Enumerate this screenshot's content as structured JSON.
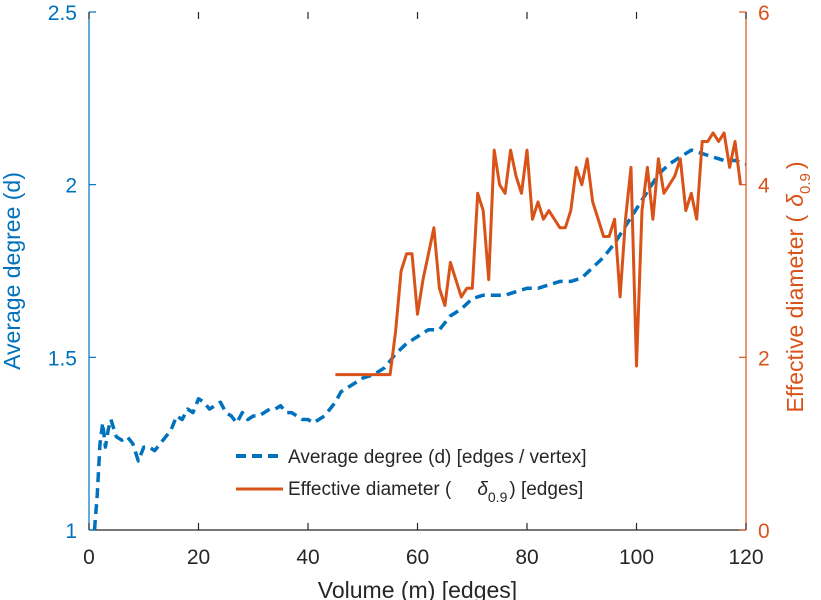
{
  "chart_data": {
    "type": "line",
    "xlabel": "Volume (m) [edges]",
    "ylabel_left": "Average degree (d)",
    "ylabel_right_prefix": "Effective diameter (",
    "ylabel_right_symbol": "δ",
    "ylabel_right_sub": "0.9",
    "ylabel_right_suffix": ")",
    "xlim": [
      0,
      120
    ],
    "ylim_left": [
      1,
      2.5
    ],
    "ylim_right": [
      0,
      6
    ],
    "xticks": [
      0,
      20,
      40,
      60,
      80,
      100,
      120
    ],
    "yticks_left": [
      "1",
      "1.5",
      "2",
      "2.5"
    ],
    "yticks_left_values": [
      1,
      1.5,
      2,
      2.5
    ],
    "yticks_right": [
      "0",
      "2",
      "4",
      "6"
    ],
    "yticks_right_values": [
      0,
      2,
      4,
      6
    ],
    "grid": false,
    "legend_position": "bottom-right",
    "colors": {
      "left": "#0072BD",
      "right": "#D95319",
      "axis": "#262626"
    },
    "series": [
      {
        "name": "Average degree (d) [edges / vertex]",
        "axis": "left",
        "style": "dashed",
        "color": "#0072BD",
        "x": [
          1,
          1.5,
          2,
          2.5,
          3,
          3.5,
          4,
          5,
          6,
          7,
          8,
          9,
          10,
          11,
          12,
          13,
          14,
          15,
          16,
          17,
          18,
          19,
          20,
          21,
          22,
          23,
          24,
          25,
          26,
          27,
          28,
          29,
          30,
          31,
          32,
          33,
          34,
          35,
          36,
          37,
          38,
          39,
          40,
          41,
          42,
          43,
          44,
          45,
          46,
          47,
          48,
          50,
          52,
          54,
          56,
          58,
          60,
          62,
          64,
          66,
          68,
          70,
          72,
          74,
          76,
          78,
          80,
          82,
          84,
          86,
          88,
          90,
          92,
          94,
          96,
          98,
          100,
          102,
          104,
          106,
          108,
          110,
          112,
          114,
          116,
          118,
          120
        ],
        "values": [
          1.0,
          1.1,
          1.25,
          1.31,
          1.24,
          1.29,
          1.32,
          1.27,
          1.26,
          1.27,
          1.25,
          1.2,
          1.24,
          1.24,
          1.23,
          1.25,
          1.27,
          1.29,
          1.33,
          1.32,
          1.35,
          1.34,
          1.38,
          1.37,
          1.35,
          1.36,
          1.37,
          1.34,
          1.33,
          1.31,
          1.34,
          1.32,
          1.33,
          1.33,
          1.34,
          1.35,
          1.35,
          1.36,
          1.34,
          1.34,
          1.33,
          1.32,
          1.32,
          1.31,
          1.32,
          1.33,
          1.35,
          1.37,
          1.4,
          1.41,
          1.42,
          1.44,
          1.45,
          1.47,
          1.51,
          1.54,
          1.56,
          1.58,
          1.58,
          1.62,
          1.64,
          1.67,
          1.68,
          1.68,
          1.68,
          1.69,
          1.7,
          1.7,
          1.71,
          1.72,
          1.72,
          1.73,
          1.76,
          1.79,
          1.83,
          1.88,
          1.93,
          1.98,
          2.03,
          2.06,
          2.08,
          2.1,
          2.09,
          2.08,
          2.07,
          2.07,
          2.06
        ]
      },
      {
        "name": "Effective diameter (δ0.9) [edges]",
        "name_prefix": "Effective diameter (",
        "name_symbol": "δ",
        "name_sub": "0.9",
        "name_suffix": ") [edges]",
        "axis": "right",
        "style": "solid",
        "color": "#D95319",
        "x": [
          45,
          55,
          56,
          57,
          58,
          59,
          60,
          61,
          62,
          63,
          64,
          65,
          66,
          67,
          68,
          69,
          70,
          71,
          72,
          73,
          74,
          75,
          76,
          77,
          78,
          79,
          80,
          81,
          82,
          83,
          84,
          85,
          86,
          87,
          88,
          89,
          90,
          91,
          92,
          93,
          94,
          95,
          96,
          97,
          98,
          99,
          100,
          101,
          102,
          103,
          104,
          105,
          106,
          107,
          108,
          109,
          110,
          111,
          112,
          113,
          114,
          115,
          116,
          117,
          118,
          119
        ],
        "values": [
          1.8,
          1.8,
          2.3,
          3.0,
          3.2,
          3.2,
          2.5,
          2.9,
          3.2,
          3.5,
          2.8,
          2.6,
          3.1,
          2.9,
          2.7,
          2.8,
          2.8,
          3.9,
          3.7,
          2.9,
          4.4,
          4.0,
          3.9,
          4.4,
          4.1,
          3.9,
          4.4,
          3.6,
          3.8,
          3.6,
          3.7,
          3.6,
          3.5,
          3.5,
          3.7,
          4.2,
          4.0,
          4.3,
          3.8,
          3.6,
          3.4,
          3.4,
          3.6,
          2.7,
          3.6,
          4.2,
          1.9,
          3.7,
          4.2,
          3.6,
          4.3,
          3.9,
          4.0,
          4.1,
          4.3,
          3.7,
          3.9,
          3.6,
          4.5,
          4.5,
          4.6,
          4.5,
          4.6,
          4.2,
          4.5,
          4.0
        ]
      }
    ]
  }
}
